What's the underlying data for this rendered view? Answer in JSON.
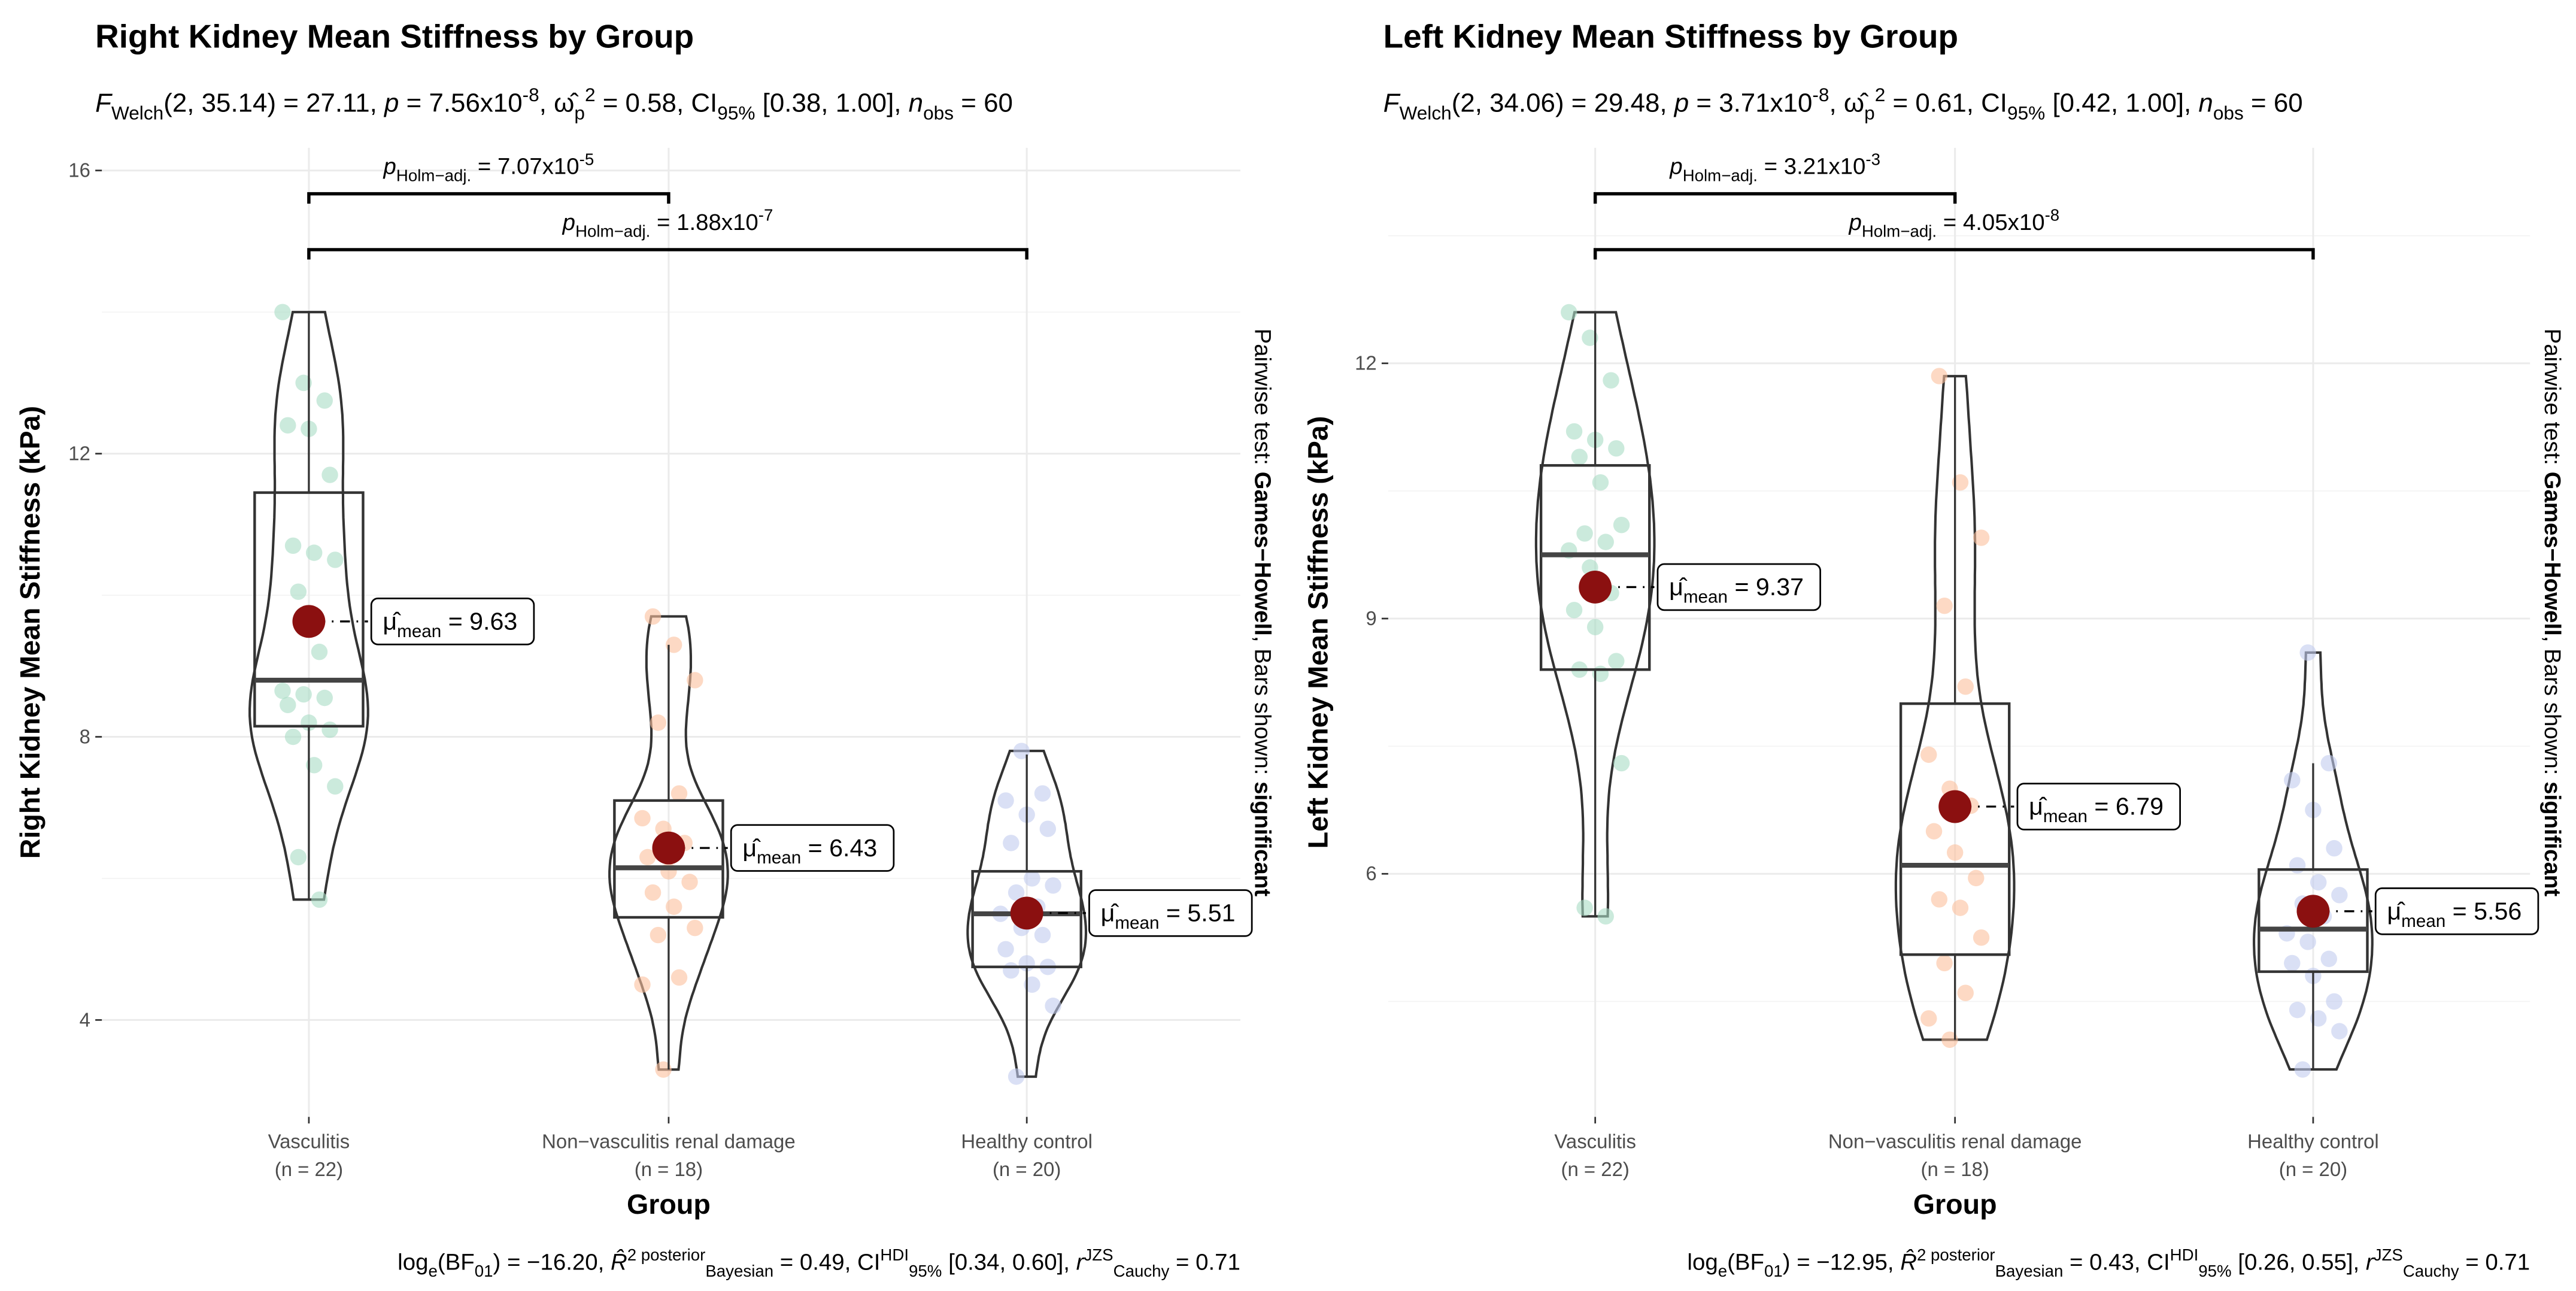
{
  "colors": {
    "mean_point": "#8b1010",
    "outline": "#333333",
    "groups": [
      "#a8dcc4",
      "#fbbf9c",
      "#c2cbee"
    ]
  },
  "chart_data": [
    {
      "type": "scatter",
      "subtype": "violin-box-jitter",
      "title": "Right Kidney Mean Stiffness by Group",
      "subtitle": [
        {
          "t": "F",
          "s": "i"
        },
        {
          "t": "Welch",
          "s": "sub"
        },
        {
          "t": "(2, 35.14) = 27.11, ",
          "s": "n"
        },
        {
          "t": "p",
          "s": "i"
        },
        {
          "t": " = 7.56x10",
          "s": "n"
        },
        {
          "t": "-8",
          "s": "sup"
        },
        {
          "t": ", ω̂",
          "s": "n"
        },
        {
          "t": "p",
          "s": "sub"
        },
        {
          "t": "2",
          "s": "sup"
        },
        {
          "t": " = 0.58, CI",
          "s": "n"
        },
        {
          "t": "95%",
          "s": "sub"
        },
        {
          "t": " [0.38, 1.00], ",
          "s": "n"
        },
        {
          "t": "n",
          "s": "i"
        },
        {
          "t": "obs",
          "s": "sub"
        },
        {
          "t": " = 60",
          "s": "n"
        }
      ],
      "xlabel": "Group",
      "ylabel": "Right Kidney Mean Stiffness (kPa)",
      "yticks": [
        4,
        8,
        12,
        16
      ],
      "side_text": [
        {
          "t": "Pairwise test: ",
          "s": "n"
        },
        {
          "t": "Games−Howell",
          "s": "b"
        },
        {
          "t": ", Bars shown: ",
          "s": "n"
        },
        {
          "t": "significant",
          "s": "b"
        }
      ],
      "caption": [
        {
          "t": "log",
          "s": "n"
        },
        {
          "t": "e",
          "s": "sub"
        },
        {
          "t": "(BF",
          "s": "n"
        },
        {
          "t": "01",
          "s": "sub"
        },
        {
          "t": ") = −16.20, ",
          "s": "n"
        },
        {
          "t": "R̂",
          "s": "i"
        },
        {
          "t": "2 posterior",
          "s": "sup"
        },
        {
          "t": "Bayesian",
          "s": "sub"
        },
        {
          "t": " = 0.49, CI",
          "s": "n"
        },
        {
          "t": "HDI",
          "s": "sup"
        },
        {
          "t": "95%",
          "s": "sub"
        },
        {
          "t": " [0.34, 0.60], ",
          "s": "n"
        },
        {
          "t": "r",
          "s": "i"
        },
        {
          "t": "JZS",
          "s": "sup"
        },
        {
          "t": "Cauchy",
          "s": "sub"
        },
        {
          "t": " = 0.71",
          "s": "n"
        }
      ],
      "groups": [
        {
          "name": "Vasculitis",
          "n_label": "(n = 22)",
          "mean": 9.63,
          "mean_label": "9.63",
          "q1": 8.15,
          "median": 8.8,
          "q3": 11.45,
          "wlo": 5.7,
          "whi": 14.0,
          "values": [
            14.0,
            13.0,
            12.75,
            12.4,
            12.35,
            11.7,
            10.7,
            10.6,
            10.5,
            10.05,
            9.2,
            8.65,
            8.6,
            8.55,
            8.45,
            8.2,
            8.1,
            8.0,
            7.6,
            7.3,
            6.3,
            5.7
          ]
        },
        {
          "name": "Non−vasculitis renal damage",
          "n_label": "(n = 18)",
          "mean": 6.43,
          "mean_label": "6.43",
          "q1": 5.45,
          "median": 6.15,
          "q3": 7.1,
          "wlo": 3.3,
          "whi": 9.3,
          "values": [
            9.7,
            9.3,
            8.8,
            8.2,
            7.2,
            6.85,
            6.7,
            6.5,
            6.3,
            6.1,
            5.95,
            5.8,
            5.6,
            5.3,
            5.2,
            4.6,
            4.5,
            3.3
          ]
        },
        {
          "name": "Healthy control",
          "n_label": "(n = 20)",
          "mean": 5.51,
          "mean_label": "5.51",
          "q1": 4.75,
          "median": 5.5,
          "q3": 6.1,
          "wlo": 3.2,
          "whi": 7.75,
          "values": [
            7.8,
            7.2,
            7.1,
            6.9,
            6.7,
            6.5,
            6.0,
            5.9,
            5.8,
            5.6,
            5.5,
            5.3,
            5.2,
            5.0,
            4.8,
            4.75,
            4.7,
            4.5,
            4.2,
            3.2
          ]
        }
      ],
      "comparisons": [
        {
          "from": 0,
          "to": 1,
          "label": [
            {
              "t": "p",
              "s": "i"
            },
            {
              "t": "Holm−adj.",
              "s": "sub"
            },
            {
              "t": " = 7.07x10",
              "s": "n"
            },
            {
              "t": "-5",
              "s": "sup"
            }
          ]
        },
        {
          "from": 0,
          "to": 2,
          "label": [
            {
              "t": "p",
              "s": "i"
            },
            {
              "t": "Holm−adj.",
              "s": "sub"
            },
            {
              "t": " = 1.88x10",
              "s": "n"
            },
            {
              "t": "-7",
              "s": "sup"
            }
          ]
        }
      ],
      "mean_symbol": "μ̂",
      "mean_sub": "mean"
    },
    {
      "type": "scatter",
      "subtype": "violin-box-jitter",
      "title": "Left Kidney Mean Stiffness by Group",
      "subtitle": [
        {
          "t": "F",
          "s": "i"
        },
        {
          "t": "Welch",
          "s": "sub"
        },
        {
          "t": "(2, 34.06) = 29.48, ",
          "s": "n"
        },
        {
          "t": "p",
          "s": "i"
        },
        {
          "t": " = 3.71x10",
          "s": "n"
        },
        {
          "t": "-8",
          "s": "sup"
        },
        {
          "t": ", ω̂",
          "s": "n"
        },
        {
          "t": "p",
          "s": "sub"
        },
        {
          "t": "2",
          "s": "sup"
        },
        {
          "t": " = 0.61, CI",
          "s": "n"
        },
        {
          "t": "95%",
          "s": "sub"
        },
        {
          "t": " [0.42, 1.00], ",
          "s": "n"
        },
        {
          "t": "n",
          "s": "i"
        },
        {
          "t": "obs",
          "s": "sub"
        },
        {
          "t": " = 60",
          "s": "n"
        }
      ],
      "xlabel": "Group",
      "ylabel": "Left Kidney Mean Stiffness (kPa)",
      "yticks": [
        6,
        9,
        12
      ],
      "side_text": [
        {
          "t": "Pairwise test: ",
          "s": "n"
        },
        {
          "t": "Games−Howell",
          "s": "b"
        },
        {
          "t": ", Bars shown: ",
          "s": "n"
        },
        {
          "t": "significant",
          "s": "b"
        }
      ],
      "caption": [
        {
          "t": "log",
          "s": "n"
        },
        {
          "t": "e",
          "s": "sub"
        },
        {
          "t": "(BF",
          "s": "n"
        },
        {
          "t": "01",
          "s": "sub"
        },
        {
          "t": ") = −12.95, ",
          "s": "n"
        },
        {
          "t": "R̂",
          "s": "i"
        },
        {
          "t": "2 posterior",
          "s": "sup"
        },
        {
          "t": "Bayesian",
          "s": "sub"
        },
        {
          "t": " = 0.43, CI",
          "s": "n"
        },
        {
          "t": "HDI",
          "s": "sup"
        },
        {
          "t": "95%",
          "s": "sub"
        },
        {
          "t": " [0.26, 0.55], ",
          "s": "n"
        },
        {
          "t": "r",
          "s": "i"
        },
        {
          "t": "JZS",
          "s": "sup"
        },
        {
          "t": "Cauchy",
          "s": "sub"
        },
        {
          "t": " = 0.71",
          "s": "n"
        }
      ],
      "groups": [
        {
          "name": "Vasculitis",
          "n_label": "(n = 22)",
          "mean": 9.37,
          "mean_label": "9.37",
          "q1": 8.4,
          "median": 9.75,
          "q3": 10.8,
          "wlo": 5.5,
          "whi": 12.6,
          "values": [
            12.6,
            12.3,
            11.8,
            11.2,
            11.1,
            11.0,
            10.9,
            10.6,
            10.1,
            10.0,
            9.9,
            9.8,
            9.6,
            9.3,
            9.1,
            8.9,
            8.5,
            8.4,
            8.35,
            7.3,
            5.6,
            5.5
          ]
        },
        {
          "name": "Non−vasculitis renal damage",
          "n_label": "(n = 18)",
          "mean": 6.79,
          "mean_label": "6.79",
          "q1": 5.05,
          "median": 6.1,
          "q3": 8.0,
          "wlo": 4.05,
          "whi": 11.85,
          "values": [
            11.85,
            10.6,
            9.95,
            9.15,
            8.2,
            7.4,
            7.0,
            6.8,
            6.5,
            6.25,
            5.95,
            5.7,
            5.6,
            5.25,
            4.95,
            4.6,
            4.3,
            4.05
          ]
        },
        {
          "name": "Healthy control",
          "n_label": "(n = 20)",
          "mean": 5.56,
          "mean_label": "5.56",
          "q1": 4.85,
          "median": 5.35,
          "q3": 6.05,
          "wlo": 3.7,
          "whi": 7.3,
          "values": [
            8.6,
            7.3,
            7.1,
            6.75,
            6.3,
            6.1,
            5.9,
            5.75,
            5.65,
            5.5,
            5.3,
            5.2,
            5.0,
            4.95,
            4.8,
            4.5,
            4.4,
            4.3,
            4.15,
            3.7
          ]
        }
      ],
      "comparisons": [
        {
          "from": 0,
          "to": 1,
          "label": [
            {
              "t": "p",
              "s": "i"
            },
            {
              "t": "Holm−adj.",
              "s": "sub"
            },
            {
              "t": " = 3.21x10",
              "s": "n"
            },
            {
              "t": "-3",
              "s": "sup"
            }
          ]
        },
        {
          "from": 0,
          "to": 2,
          "label": [
            {
              "t": "p",
              "s": "i"
            },
            {
              "t": "Holm−adj.",
              "s": "sub"
            },
            {
              "t": " = 4.05x10",
              "s": "n"
            },
            {
              "t": "-8",
              "s": "sup"
            }
          ]
        }
      ],
      "mean_symbol": "μ̂",
      "mean_sub": "mean"
    }
  ]
}
